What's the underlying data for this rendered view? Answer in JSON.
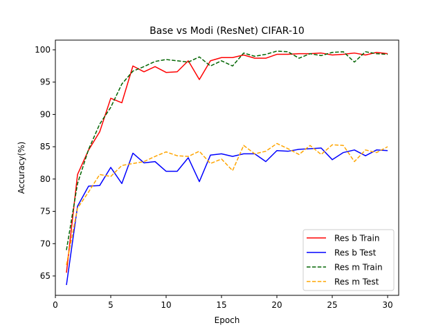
{
  "chart_data": {
    "type": "line",
    "title": "Base vs Modi (ResNet) CIFAR-10",
    "xlabel": "Epoch",
    "ylabel": "Accuracy(%)",
    "xlim": [
      0,
      31
    ],
    "ylim": [
      62,
      101.5
    ],
    "xticks": [
      0,
      5,
      10,
      15,
      20,
      25,
      30
    ],
    "yticks": [
      65,
      70,
      75,
      80,
      85,
      90,
      95,
      100
    ],
    "grid": false,
    "legend_position": "lower-right",
    "x": [
      1,
      2,
      3,
      4,
      5,
      6,
      7,
      8,
      9,
      10,
      11,
      12,
      13,
      14,
      15,
      16,
      17,
      18,
      19,
      20,
      21,
      22,
      23,
      24,
      25,
      26,
      27,
      28,
      29,
      30
    ],
    "series": [
      {
        "name": "Res b Train",
        "color": "#ff0000",
        "dash": "solid",
        "values": [
          65.5,
          80.7,
          84.5,
          87.3,
          92.5,
          91.8,
          97.5,
          96.6,
          97.4,
          96.5,
          96.6,
          98.3,
          95.4,
          98.3,
          98.8,
          98.8,
          99.2,
          98.7,
          98.7,
          99.3,
          99.3,
          99.4,
          99.4,
          99.5,
          99.2,
          99.3,
          99.5,
          99.2,
          99.6,
          99.4
        ]
      },
      {
        "name": "Res b Test",
        "color": "#0000ff",
        "dash": "solid",
        "values": [
          63.6,
          75.8,
          78.9,
          79.0,
          81.8,
          79.3,
          84.0,
          82.5,
          82.7,
          81.2,
          81.2,
          83.3,
          79.6,
          83.7,
          83.9,
          83.5,
          83.9,
          83.9,
          82.7,
          84.4,
          84.3,
          84.6,
          84.7,
          84.8,
          83.0,
          84.1,
          84.5,
          83.6,
          84.5,
          84.4
        ]
      },
      {
        "name": "Res m Train",
        "color": "#006400",
        "dash": "dashed",
        "values": [
          69.0,
          79.3,
          84.6,
          88.5,
          91.1,
          94.7,
          96.7,
          97.4,
          98.2,
          98.5,
          98.3,
          98.1,
          98.9,
          97.5,
          98.3,
          97.5,
          99.5,
          99.0,
          99.3,
          99.8,
          99.7,
          98.7,
          99.4,
          99.1,
          99.6,
          99.7,
          98.1,
          99.7,
          99.4,
          99.3
        ]
      },
      {
        "name": "Res m Test",
        "color": "#ffa500",
        "dash": "dashed",
        "values": [
          66.7,
          75.5,
          78.0,
          80.7,
          80.4,
          82.1,
          82.4,
          82.7,
          83.5,
          84.2,
          83.6,
          83.5,
          84.3,
          82.4,
          83.1,
          81.3,
          85.2,
          83.9,
          84.3,
          85.5,
          84.7,
          83.8,
          85.2,
          83.8,
          85.3,
          85.2,
          82.7,
          84.5,
          84.1,
          85.0
        ]
      }
    ]
  }
}
